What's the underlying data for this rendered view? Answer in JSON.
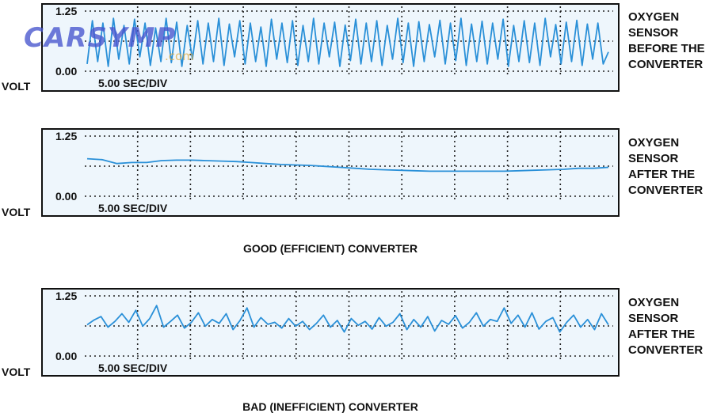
{
  "panels": [
    {
      "id": "before",
      "y_top": "1.25",
      "y_bottom": "0.00",
      "timebase": "5.00 SEC/DIV",
      "y_label": "VOLT",
      "side_label": [
        "OXYGEN",
        "SENSOR",
        "BEFORE THE",
        "CONVERTER"
      ],
      "signal": "rapid switching between low and high voltage",
      "values": [
        0.15,
        1.05,
        0.2,
        1.0,
        0.1,
        1.1,
        0.25,
        0.95,
        0.15,
        1.08,
        0.3,
        1.0,
        0.12,
        0.9,
        0.2,
        1.1,
        0.18,
        1.02,
        0.1,
        0.95,
        0.25,
        1.05,
        0.15,
        1.0,
        0.2,
        1.1,
        0.12,
        0.98,
        0.3,
        1.05,
        0.15,
        1.0,
        0.2,
        0.92,
        0.1,
        1.08,
        0.25,
        1.0,
        0.18,
        1.05,
        0.12,
        0.95,
        0.2,
        1.1,
        0.15,
        1.0,
        0.3,
        1.02,
        0.1,
        0.96,
        0.22,
        1.08,
        0.15,
        1.0,
        0.2,
        1.05,
        0.12,
        0.95,
        0.25,
        1.1,
        0.18,
        1.0,
        0.1,
        1.03,
        0.2,
        0.97,
        0.3,
        1.06,
        0.15,
        1.0,
        0.22,
        1.1,
        0.12,
        0.98,
        0.2,
        1.04,
        0.15,
        1.0,
        0.25,
        1.08,
        0.1,
        0.95,
        0.2,
        1.05,
        0.18,
        1.0,
        0.12,
        1.1,
        0.3,
        0.97,
        0.15,
        1.02,
        0.2,
        1.06,
        0.12,
        0.98,
        0.25,
        1.0,
        0.15,
        0.4
      ]
    },
    {
      "id": "after-good",
      "y_top": "1.25",
      "y_bottom": "0.00",
      "timebase": "5.00 SEC/DIV",
      "y_label": "VOLT",
      "side_label": [
        "OXYGEN",
        "SENSOR",
        "AFTER THE",
        "CONVERTER"
      ],
      "signal": "steady, nearly flat voltage",
      "values": [
        0.78,
        0.76,
        0.68,
        0.7,
        0.7,
        0.74,
        0.75,
        0.75,
        0.74,
        0.73,
        0.72,
        0.7,
        0.68,
        0.66,
        0.65,
        0.64,
        0.62,
        0.6,
        0.58,
        0.56,
        0.55,
        0.54,
        0.53,
        0.52,
        0.52,
        0.52,
        0.52,
        0.52,
        0.52,
        0.53,
        0.54,
        0.55,
        0.56,
        0.58,
        0.58,
        0.6
      ]
    },
    {
      "id": "after-bad",
      "y_top": "1.25",
      "y_bottom": "0.00",
      "timebase": "5.00 SEC/DIV",
      "y_label": "VOLT",
      "side_label": [
        "OXYGEN",
        "SENSOR",
        "AFTER THE",
        "CONVERTER"
      ],
      "signal": "irregular fluctuating voltage",
      "values": [
        0.65,
        0.75,
        0.82,
        0.6,
        0.72,
        0.88,
        0.7,
        0.95,
        0.62,
        0.78,
        1.05,
        0.6,
        0.72,
        0.85,
        0.58,
        0.7,
        0.9,
        0.62,
        0.76,
        0.68,
        0.88,
        0.55,
        0.74,
        1.0,
        0.6,
        0.8,
        0.66,
        0.7,
        0.58,
        0.78,
        0.62,
        0.72,
        0.55,
        0.68,
        0.85,
        0.6,
        0.74,
        0.5,
        0.78,
        0.64,
        0.72,
        0.56,
        0.8,
        0.62,
        0.7,
        0.88,
        0.55,
        0.76,
        0.6,
        0.82,
        0.52,
        0.74,
        0.66,
        0.84,
        0.58,
        0.7,
        0.9,
        0.62,
        0.76,
        0.72,
        1.0,
        0.68,
        0.85,
        0.6,
        0.9,
        0.56,
        0.72,
        0.8,
        0.5,
        0.7,
        0.85,
        0.6,
        0.76,
        0.55,
        0.88,
        0.65
      ]
    }
  ],
  "captions": {
    "good": "GOOD (EFFICIENT) CONVERTER",
    "bad": "BAD (INEFFICIENT) CONVERTER"
  },
  "watermark": {
    "main": "CARSYMP",
    "sub": ".com"
  },
  "colors": {
    "trace": "#2a90d8",
    "screen": "#eef6fc",
    "border": "#111111"
  }
}
